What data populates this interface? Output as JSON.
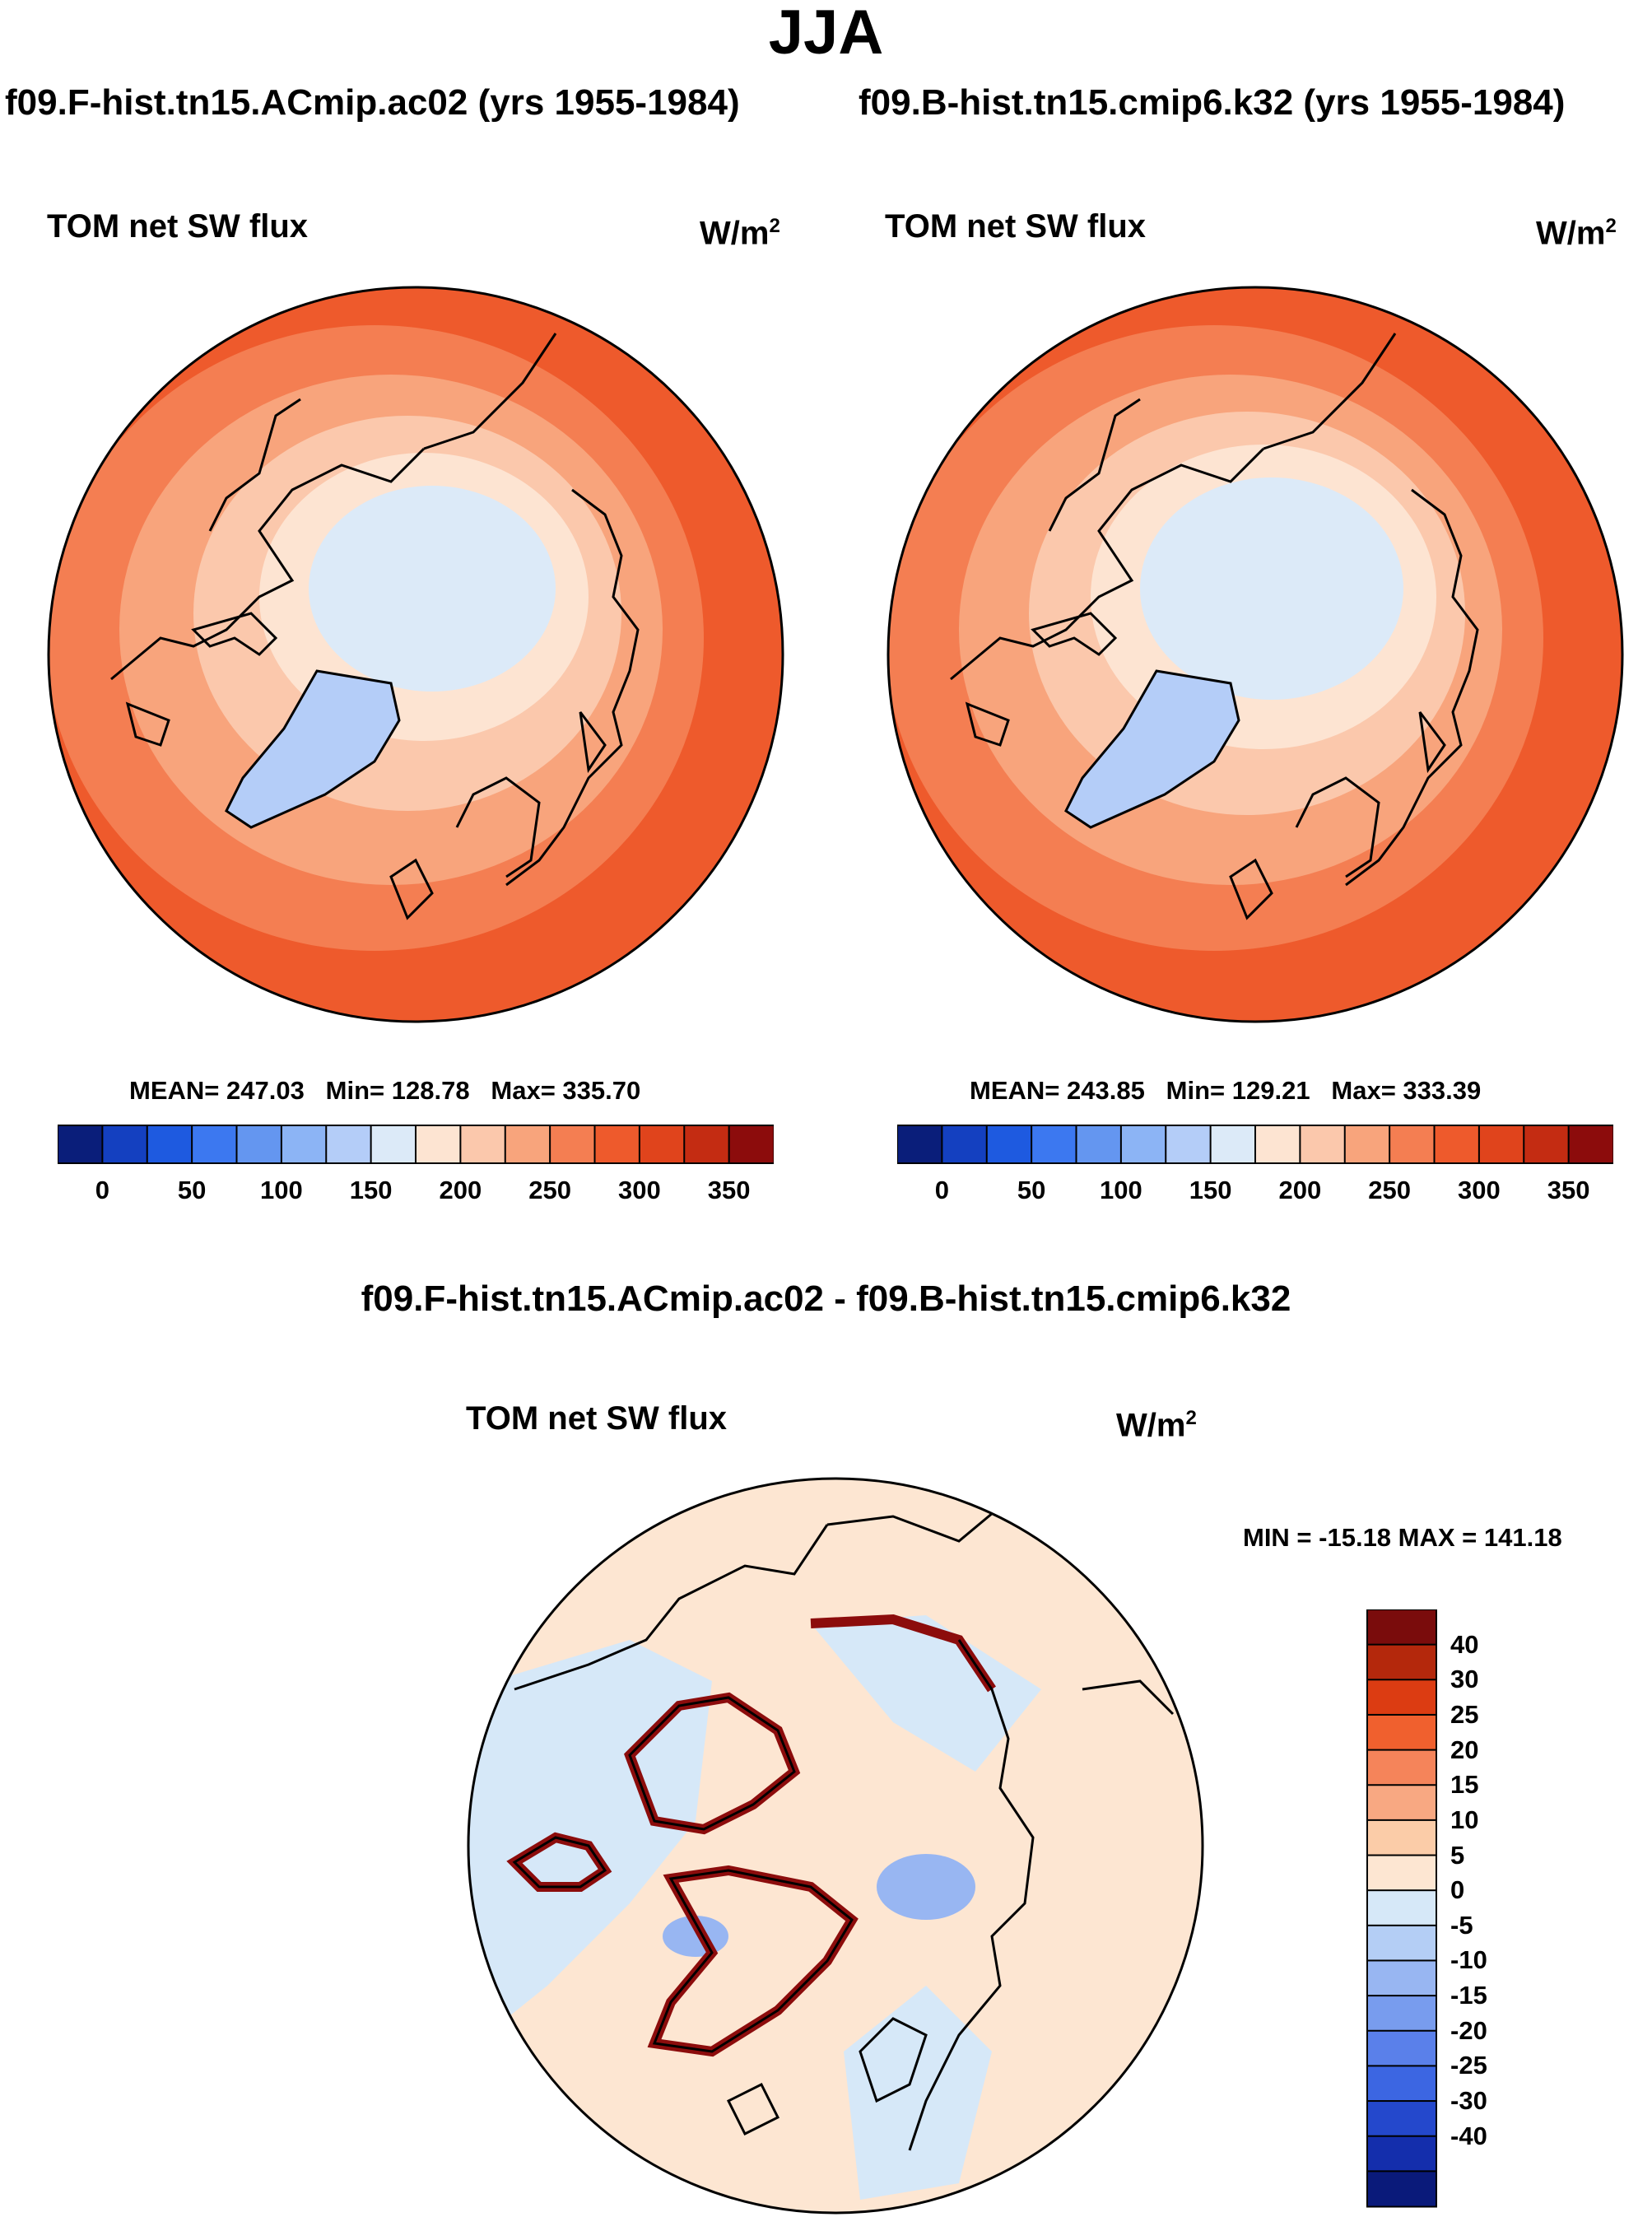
{
  "title": "JJA",
  "case1": "f09.F-hist.tn15.ACmip.ac02 (yrs 1955-1984)",
  "case2": "f09.B-hist.tn15.cmip6.k32 (yrs 1955-1984)",
  "diff_title": "f09.F-hist.tn15.ACmip.ac02 - f09.B-hist.tn15.cmip6.k32",
  "panels": [
    {
      "variable": "TOM net SW flux",
      "units": "W/m",
      "units_sup": "2",
      "stats": {
        "mean": "MEAN= 247.03",
        "min": "Min= 128.78",
        "max": "Max= 335.70"
      }
    },
    {
      "variable": "TOM net SW flux",
      "units": "W/m",
      "units_sup": "2",
      "stats": {
        "mean": "MEAN= 243.85",
        "min": "Min= 129.21",
        "max": "Max= 333.39"
      }
    },
    {
      "variable": "TOM net SW flux",
      "units": "W/m",
      "units_sup": "2",
      "minmax": "MIN = -15.18 MAX = 141.18"
    }
  ],
  "colorbar_main": {
    "colors": [
      "#0a1e7a",
      "#1440c0",
      "#1e5ae0",
      "#3c78f0",
      "#6496f0",
      "#8cb4f5",
      "#b4cdf8",
      "#dceaf8",
      "#fde4d2",
      "#fbc8ac",
      "#f8a47c",
      "#f47e52",
      "#ee5a2c",
      "#e0441c",
      "#c42c12",
      "#8c0c0c"
    ],
    "ticks": [
      "0",
      "50",
      "100",
      "150",
      "200",
      "250",
      "300",
      "350"
    ]
  },
  "colorbar_diff": {
    "colors": [
      "#7a0c0c",
      "#b4280c",
      "#dc3c12",
      "#f0602e",
      "#f5845a",
      "#f8a882",
      "#fbcca8",
      "#fde6d2",
      "#d6e8f8",
      "#b4cef5",
      "#98b6f2",
      "#789cee",
      "#5a80ea",
      "#3c66e2",
      "#2448cc",
      "#142eac",
      "#0a1a7a"
    ],
    "ticks": [
      "40",
      "30",
      "25",
      "20",
      "15",
      "10",
      "5",
      "0",
      "-5",
      "-10",
      "-15",
      "-20",
      "-25",
      "-30",
      "-40"
    ]
  },
  "colors": {
    "map_outer": "#ee5a2c",
    "map_mid": "#f47e52",
    "map_light": "#f8a47c",
    "map_pale": "#fbc8ac",
    "map_cream": "#fde4d2",
    "map_ice": "#dceaf8",
    "map_greenland": "#b4cdf8",
    "diff_base": "#fde6d2",
    "diff_blue": "#d6e8f8"
  }
}
